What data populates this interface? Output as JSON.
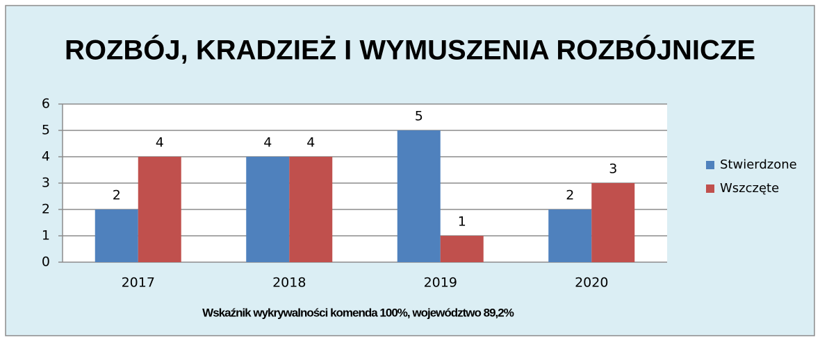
{
  "chart_data": {
    "type": "bar",
    "title": "ROZBÓJ, KRADZIEŻ I WYMUSZENIA ROZBÓJNICZE",
    "categories": [
      "2017",
      "2018",
      "2019",
      "2020"
    ],
    "series": [
      {
        "name": "Stwierdzone",
        "color": "#4f81bd",
        "values": [
          2,
          4,
          5,
          2
        ]
      },
      {
        "name": "Wszczęte",
        "color": "#c0504d",
        "values": [
          4,
          4,
          1,
          3
        ]
      }
    ],
    "xlabel": "Wskaźnik wykrywalności komenda 100%, województwo 89,2%",
    "ylim": [
      0,
      6
    ],
    "yticks": [
      0,
      1,
      2,
      3,
      4,
      5,
      6
    ],
    "grid": true,
    "legend": "right"
  }
}
